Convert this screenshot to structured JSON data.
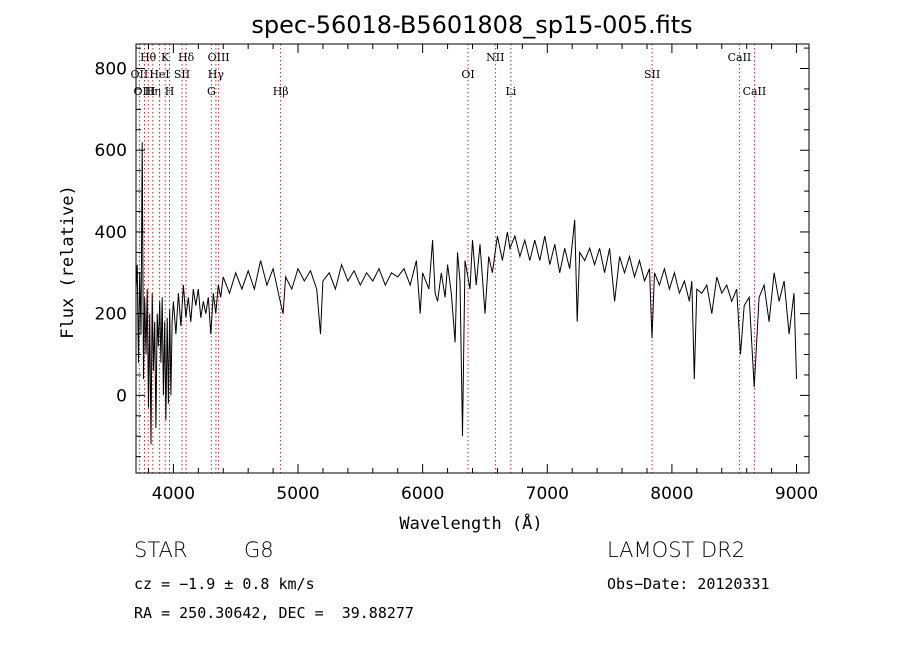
{
  "chart_data": {
    "type": "line",
    "title": "spec-56018-B5601808_sp15-005.fits",
    "xlabel": "Wavelength (Å)",
    "ylabel": "Flux (relative)",
    "xlim": [
      3700,
      9100
    ],
    "ylim": [
      -190,
      860
    ],
    "xticks": [
      4000,
      5000,
      6000,
      7000,
      8000,
      9000
    ],
    "yticks": [
      0,
      200,
      400,
      600,
      800
    ],
    "series": [
      {
        "values": [
          [
            3700,
            260
          ],
          [
            3710,
            320
          ],
          [
            3720,
            80
          ],
          [
            3730,
            300
          ],
          [
            3740,
            150
          ],
          [
            3750,
            620
          ],
          [
            3760,
            40
          ],
          [
            3770,
            240
          ],
          [
            3780,
            100
          ],
          [
            3790,
            260
          ],
          [
            3800,
            -30
          ],
          [
            3810,
            200
          ],
          [
            3820,
            -120
          ],
          [
            3830,
            250
          ],
          [
            3840,
            60
          ],
          [
            3850,
            180
          ],
          [
            3860,
            -80
          ],
          [
            3870,
            200
          ],
          [
            3880,
            120
          ],
          [
            3890,
            230
          ],
          [
            3900,
            80
          ],
          [
            3910,
            240
          ],
          [
            3920,
            0
          ],
          [
            3930,
            180
          ],
          [
            3940,
            -60
          ],
          [
            3950,
            190
          ],
          [
            3960,
            -20
          ],
          [
            3970,
            210
          ],
          [
            3980,
            0
          ],
          [
            3990,
            180
          ],
          [
            4000,
            230
          ],
          [
            4020,
            150
          ],
          [
            4040,
            250
          ],
          [
            4060,
            170
          ],
          [
            4080,
            270
          ],
          [
            4100,
            190
          ],
          [
            4120,
            240
          ],
          [
            4140,
            180
          ],
          [
            4160,
            260
          ],
          [
            4180,
            220
          ],
          [
            4200,
            260
          ],
          [
            4220,
            190
          ],
          [
            4240,
            230
          ],
          [
            4260,
            200
          ],
          [
            4280,
            240
          ],
          [
            4300,
            150
          ],
          [
            4320,
            250
          ],
          [
            4340,
            200
          ],
          [
            4360,
            270
          ],
          [
            4380,
            240
          ],
          [
            4400,
            290
          ],
          [
            4450,
            250
          ],
          [
            4500,
            300
          ],
          [
            4550,
            260
          ],
          [
            4600,
            305
          ],
          [
            4650,
            260
          ],
          [
            4700,
            330
          ],
          [
            4750,
            270
          ],
          [
            4800,
            310
          ],
          [
            4850,
            240
          ],
          [
            4880,
            200
          ],
          [
            4900,
            290
          ],
          [
            4950,
            260
          ],
          [
            5000,
            310
          ],
          [
            5050,
            280
          ],
          [
            5100,
            305
          ],
          [
            5150,
            260
          ],
          [
            5180,
            150
          ],
          [
            5200,
            280
          ],
          [
            5250,
            300
          ],
          [
            5300,
            260
          ],
          [
            5350,
            320
          ],
          [
            5400,
            280
          ],
          [
            5450,
            305
          ],
          [
            5500,
            270
          ],
          [
            5550,
            300
          ],
          [
            5600,
            280
          ],
          [
            5650,
            310
          ],
          [
            5700,
            270
          ],
          [
            5750,
            300
          ],
          [
            5800,
            290
          ],
          [
            5850,
            310
          ],
          [
            5900,
            270
          ],
          [
            5950,
            330
          ],
          [
            5980,
            200
          ],
          [
            6000,
            300
          ],
          [
            6050,
            260
          ],
          [
            6080,
            380
          ],
          [
            6100,
            250
          ],
          [
            6120,
            230
          ],
          [
            6150,
            300
          ],
          [
            6180,
            240
          ],
          [
            6200,
            320
          ],
          [
            6230,
            250
          ],
          [
            6260,
            130
          ],
          [
            6280,
            350
          ],
          [
            6300,
            280
          ],
          [
            6320,
            -100
          ],
          [
            6340,
            330
          ],
          [
            6380,
            260
          ],
          [
            6400,
            380
          ],
          [
            6430,
            270
          ],
          [
            6460,
            370
          ],
          [
            6500,
            200
          ],
          [
            6530,
            340
          ],
          [
            6560,
            300
          ],
          [
            6600,
            390
          ],
          [
            6640,
            330
          ],
          [
            6680,
            400
          ],
          [
            6700,
            360
          ],
          [
            6740,
            390
          ],
          [
            6780,
            340
          ],
          [
            6820,
            380
          ],
          [
            6860,
            330
          ],
          [
            6900,
            380
          ],
          [
            6940,
            330
          ],
          [
            6980,
            390
          ],
          [
            7020,
            320
          ],
          [
            7060,
            370
          ],
          [
            7100,
            300
          ],
          [
            7140,
            360
          ],
          [
            7180,
            310
          ],
          [
            7220,
            430
          ],
          [
            7240,
            180
          ],
          [
            7260,
            350
          ],
          [
            7300,
            330
          ],
          [
            7340,
            360
          ],
          [
            7380,
            320
          ],
          [
            7420,
            360
          ],
          [
            7460,
            300
          ],
          [
            7500,
            360
          ],
          [
            7540,
            230
          ],
          [
            7580,
            340
          ],
          [
            7620,
            300
          ],
          [
            7660,
            340
          ],
          [
            7700,
            290
          ],
          [
            7740,
            330
          ],
          [
            7780,
            280
          ],
          [
            7820,
            310
          ],
          [
            7840,
            140
          ],
          [
            7860,
            300
          ],
          [
            7900,
            270
          ],
          [
            7940,
            310
          ],
          [
            7980,
            260
          ],
          [
            8020,
            300
          ],
          [
            8060,
            250
          ],
          [
            8100,
            280
          ],
          [
            8140,
            230
          ],
          [
            8160,
            280
          ],
          [
            8180,
            40
          ],
          [
            8200,
            260
          ],
          [
            8240,
            250
          ],
          [
            8280,
            270
          ],
          [
            8320,
            200
          ],
          [
            8360,
            290
          ],
          [
            8400,
            250
          ],
          [
            8440,
            270
          ],
          [
            8480,
            230
          ],
          [
            8520,
            260
          ],
          [
            8550,
            100
          ],
          [
            8580,
            220
          ],
          [
            8620,
            240
          ],
          [
            8660,
            20
          ],
          [
            8700,
            240
          ],
          [
            8740,
            270
          ],
          [
            8780,
            180
          ],
          [
            8820,
            300
          ],
          [
            8860,
            230
          ],
          [
            8900,
            280
          ],
          [
            8940,
            150
          ],
          [
            8980,
            250
          ],
          [
            9000,
            40
          ]
        ]
      }
    ],
    "lines": [
      {
        "label": "Hθ",
        "x": 3798,
        "row": 1
      },
      {
        "label": "OII",
        "x": 3727,
        "row": 2
      },
      {
        "label": "OIII",
        "x": 3768,
        "row": 3
      },
      {
        "label": "Hη",
        "x": 3835,
        "row": 3
      },
      {
        "label": "K",
        "x": 3934,
        "row": 1
      },
      {
        "label": "HeI",
        "x": 3889,
        "row": 2
      },
      {
        "label": "H",
        "x": 3969,
        "row": 3
      },
      {
        "label": "Hδ",
        "x": 4102,
        "row": 1
      },
      {
        "label": "SII",
        "x": 4069,
        "row": 2
      },
      {
        "label": "OIII",
        "x": 4363,
        "row": 1
      },
      {
        "label": "Hγ",
        "x": 4341,
        "row": 2
      },
      {
        "label": "G",
        "x": 4305,
        "row": 3
      },
      {
        "label": "Hβ",
        "x": 4861,
        "row": 3
      },
      {
        "label": "OI",
        "x": 6364,
        "row": 2
      },
      {
        "label": "NII",
        "x": 6583,
        "row": 1
      },
      {
        "label": "Li",
        "x": 6708,
        "row": 3
      },
      {
        "label": "SII",
        "x": 7841,
        "row": 2
      },
      {
        "label": "CaII",
        "x": 8542,
        "row": 1
      },
      {
        "label": "CaII",
        "x": 8662,
        "row": 3
      }
    ]
  },
  "info": {
    "class": "STAR",
    "subclass": "G8",
    "survey": "LAMOST DR2",
    "cz": "cz = −1.9 ± 0.8 km/s",
    "obs_date": "Obs−Date: 20120331",
    "coords": "RA = 250.30642, DEC =  39.88277"
  }
}
